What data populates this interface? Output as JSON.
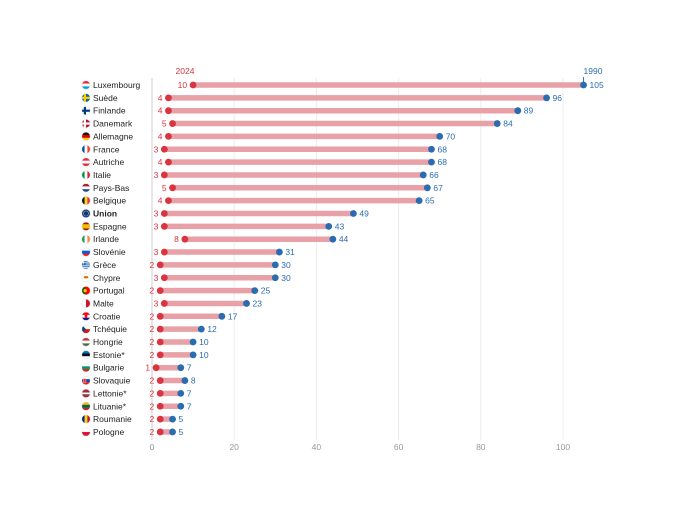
{
  "chart_data": {
    "type": "dumbbell",
    "series": [
      {
        "name": "2024",
        "color": "#d9343f"
      },
      {
        "name": "1990",
        "color": "#2b6cb0"
      }
    ],
    "bar_color": "#e7a1a7",
    "xlim": [
      0,
      105
    ],
    "xticks": [
      0,
      20,
      40,
      60,
      80,
      100
    ],
    "grid": true,
    "rows": [
      {
        "label": "Luxembourg",
        "v2024": 10,
        "v1990": 105,
        "flag": "lu-flag-icon",
        "bold": false
      },
      {
        "label": "Suède",
        "v2024": 4,
        "v1990": 96,
        "flag": "se-flag-icon",
        "bold": false
      },
      {
        "label": "Finlande",
        "v2024": 4,
        "v1990": 89,
        "flag": "fi-flag-icon",
        "bold": false
      },
      {
        "label": "Danemark",
        "v2024": 5,
        "v1990": 84,
        "flag": "dk-flag-icon",
        "bold": false
      },
      {
        "label": "Allemagne",
        "v2024": 4,
        "v1990": 70,
        "flag": "de-flag-icon",
        "bold": false
      },
      {
        "label": "France",
        "v2024": 3,
        "v1990": 68,
        "flag": "fr-flag-icon",
        "bold": false
      },
      {
        "label": "Autriche",
        "v2024": 4,
        "v1990": 68,
        "flag": "at-flag-icon",
        "bold": false
      },
      {
        "label": "Italie",
        "v2024": 3,
        "v1990": 66,
        "flag": "it-flag-icon",
        "bold": false
      },
      {
        "label": "Pays-Bas",
        "v2024": 5,
        "v1990": 67,
        "flag": "nl-flag-icon",
        "bold": false
      },
      {
        "label": "Belgique",
        "v2024": 4,
        "v1990": 65,
        "flag": "be-flag-icon",
        "bold": false
      },
      {
        "label": "Union",
        "v2024": 3,
        "v1990": 49,
        "flag": "eu-flag-icon",
        "bold": true
      },
      {
        "label": "Espagne",
        "v2024": 3,
        "v1990": 43,
        "flag": "es-flag-icon",
        "bold": false
      },
      {
        "label": "Irlande",
        "v2024": 8,
        "v1990": 44,
        "flag": "ie-flag-icon",
        "bold": false
      },
      {
        "label": "Slovénie",
        "v2024": 3,
        "v1990": 31,
        "flag": "si-flag-icon",
        "bold": false
      },
      {
        "label": "Grèce",
        "v2024": 2,
        "v1990": 30,
        "flag": "gr-flag-icon",
        "bold": false
      },
      {
        "label": "Chypre",
        "v2024": 3,
        "v1990": 30,
        "flag": "cy-flag-icon",
        "bold": false
      },
      {
        "label": "Portugal",
        "v2024": 2,
        "v1990": 25,
        "flag": "pt-flag-icon",
        "bold": false
      },
      {
        "label": "Malte",
        "v2024": 3,
        "v1990": 23,
        "flag": "mt-flag-icon",
        "bold": false
      },
      {
        "label": "Croatie",
        "v2024": 2,
        "v1990": 17,
        "flag": "hr-flag-icon",
        "bold": false
      },
      {
        "label": "Tchéquie",
        "v2024": 2,
        "v1990": 12,
        "flag": "cz-flag-icon",
        "bold": false
      },
      {
        "label": "Hongrie",
        "v2024": 2,
        "v1990": 10,
        "flag": "hu-flag-icon",
        "bold": false
      },
      {
        "label": "Estonie*",
        "v2024": 2,
        "v1990": 10,
        "flag": "ee-flag-icon",
        "bold": false
      },
      {
        "label": "Bulgarie",
        "v2024": 1,
        "v1990": 7,
        "flag": "bg-flag-icon",
        "bold": false
      },
      {
        "label": "Slovaquie",
        "v2024": 2,
        "v1990": 8,
        "flag": "sk-flag-icon",
        "bold": false
      },
      {
        "label": "Lettonie*",
        "v2024": 2,
        "v1990": 7,
        "flag": "lv-flag-icon",
        "bold": false
      },
      {
        "label": "Lituanie*",
        "v2024": 2,
        "v1990": 7,
        "flag": "lt-flag-icon",
        "bold": false
      },
      {
        "label": "Roumanie",
        "v2024": 2,
        "v1990": 5,
        "flag": "ro-flag-icon",
        "bold": false
      },
      {
        "label": "Pologne",
        "v2024": 2,
        "v1990": 5,
        "flag": "pl-flag-icon",
        "bold": false
      }
    ]
  }
}
